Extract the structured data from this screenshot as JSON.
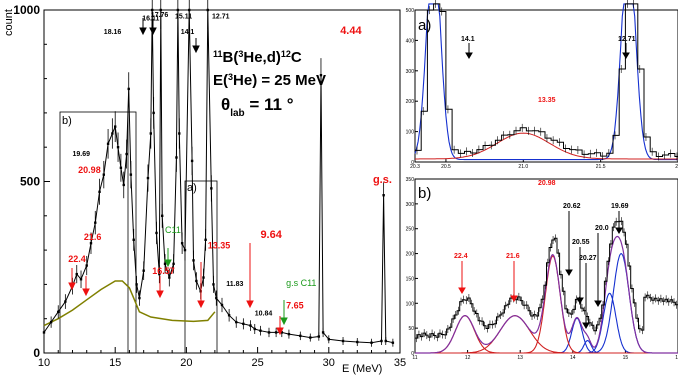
{
  "chart_data": [
    {
      "id": "main",
      "type": "line",
      "ylabel": "count",
      "xlabel": "E (MeV)",
      "xlim": [
        10,
        35
      ],
      "ylim": [
        0,
        1000
      ],
      "x_ticks": [
        "10",
        "15",
        "20",
        "25",
        "30",
        "35"
      ],
      "y_ticks": [
        "0",
        "500",
        "1000"
      ],
      "reaction": {
        "line1": "11B(3He,d)12C",
        "line2": "E(3He) = 25 MeV",
        "line3": "θlab = 11 °"
      },
      "series": [
        {
          "kind": "data",
          "x": [
            10.0,
            10.5,
            11.0,
            11.5,
            12.0,
            12.3,
            12.6,
            13.0,
            13.3,
            13.6,
            13.9,
            14.2,
            14.5,
            14.8,
            15.0,
            15.2,
            15.4,
            15.6,
            15.8,
            15.95,
            16.1,
            16.3,
            16.5,
            16.7,
            17.0,
            17.3,
            17.5,
            17.6,
            17.7,
            17.9,
            18.1,
            18.2,
            18.3,
            18.5,
            18.8,
            19.1,
            19.3,
            19.4,
            19.5,
            19.7,
            19.9,
            20.2,
            20.4,
            20.5,
            20.7,
            21.0,
            21.2,
            21.35,
            21.5,
            21.75,
            21.9,
            22.1,
            22.5,
            23.0,
            23.5,
            24.0,
            24.5,
            24.8,
            25.2,
            25.8,
            26.3,
            26.7,
            27.2,
            28.0,
            28.7,
            29.3,
            29.45,
            29.6,
            30.0,
            31.0,
            32.0,
            33.0,
            33.7,
            33.85,
            34.0,
            34.5
          ],
          "y": [
            60,
            90,
            120,
            150,
            195,
            230,
            215,
            255,
            320,
            380,
            470,
            520,
            610,
            640,
            660,
            600,
            540,
            490,
            580,
            770,
            520,
            330,
            200,
            160,
            240,
            510,
            640,
            1000,
            700,
            350,
            230,
            1000,
            400,
            260,
            220,
            260,
            570,
            1000,
            640,
            320,
            300,
            1000,
            560,
            270,
            210,
            180,
            220,
            330,
            1000,
            480,
            200,
            160,
            140,
            110,
            90,
            85,
            80,
            70,
            65,
            60,
            60,
            60,
            55,
            50,
            45,
            48,
            810,
            60,
            40,
            35,
            32,
            30,
            35,
            460,
            35,
            30
          ]
        },
        {
          "kind": "background",
          "x": [
            10,
            11,
            12,
            13,
            14,
            15,
            15.5,
            16,
            16.3,
            16.7,
            17.5,
            19,
            20.5,
            21.5,
            22
          ],
          "y": [
            80,
            100,
            125,
            155,
            185,
            210,
            210,
            190,
            160,
            120,
            105,
            95,
            92,
            95,
            120
          ]
        }
      ],
      "peak_labels": [
        {
          "text": "17.76",
          "x": 17.5,
          "y": 980,
          "color": "black"
        },
        {
          "text": "16.11",
          "x": 16.9,
          "y": 970,
          "color": "black"
        },
        {
          "text": "15.11",
          "x": 19.2,
          "y": 975,
          "color": "black"
        },
        {
          "text": "12.71",
          "x": 21.8,
          "y": 975,
          "color": "black"
        },
        {
          "text": "18.16",
          "x": 14.2,
          "y": 930,
          "color": "black"
        },
        {
          "text": "14.1",
          "x": 19.6,
          "y": 930,
          "color": "black"
        },
        {
          "text": "19.69",
          "x": 12.0,
          "y": 575,
          "color": "black"
        },
        {
          "text": "11.83",
          "x": 22.8,
          "y": 195,
          "color": "black"
        },
        {
          "text": "10.84",
          "x": 24.8,
          "y": 110,
          "color": "black"
        },
        {
          "text": "20.98",
          "x": 12.4,
          "y": 525,
          "color": "red"
        },
        {
          "text": "21.6",
          "x": 12.8,
          "y": 330,
          "color": "red"
        },
        {
          "text": "22.4",
          "x": 11.7,
          "y": 265,
          "color": "red"
        },
        {
          "text": "16.57",
          "x": 17.6,
          "y": 230,
          "color": "red"
        },
        {
          "text": "13.35",
          "x": 21.5,
          "y": 305,
          "color": "red"
        },
        {
          "text": "9.64",
          "x": 25.2,
          "y": 335,
          "color": "red"
        },
        {
          "text": "7.65",
          "x": 27.0,
          "y": 130,
          "color": "red"
        },
        {
          "text": "4.44",
          "x": 30.8,
          "y": 930,
          "color": "red"
        },
        {
          "text": "g.s.",
          "x": 33.1,
          "y": 495,
          "color": "red"
        },
        {
          "text": "C11",
          "x": 18.5,
          "y": 350,
          "color": "green"
        },
        {
          "text": "g.s C11",
          "x": 27.0,
          "y": 195,
          "color": "green"
        }
      ],
      "region_tags": [
        "b)",
        "a)"
      ]
    },
    {
      "id": "inset_a",
      "type": "line",
      "panel_tag": "a)",
      "xlim": [
        20.3,
        22.0
      ],
      "ylim": [
        0,
        500
      ],
      "x_ticks": [
        "20.3",
        "20.5",
        "21.0",
        "21.5",
        "22"
      ],
      "y_ticks": [
        "0",
        "100",
        "200",
        "300",
        "400",
        "500"
      ],
      "peak_labels": [
        "14.1",
        "13.35",
        "12.71"
      ]
    },
    {
      "id": "inset_b",
      "type": "line",
      "panel_tag": "b)",
      "xlim": [
        11,
        16
      ],
      "ylim": [
        0,
        350
      ],
      "x_ticks": [
        "11",
        "12",
        "13",
        "14",
        "15",
        "16"
      ],
      "y_ticks": [
        "0",
        "50",
        "100",
        "150",
        "200",
        "250",
        "300",
        "350"
      ],
      "peak_labels_red": [
        "20.98",
        "22.4",
        "21.6"
      ],
      "peak_labels_black": [
        "20.62",
        "20.55",
        "20.27",
        "20.0",
        "19.69"
      ]
    }
  ]
}
